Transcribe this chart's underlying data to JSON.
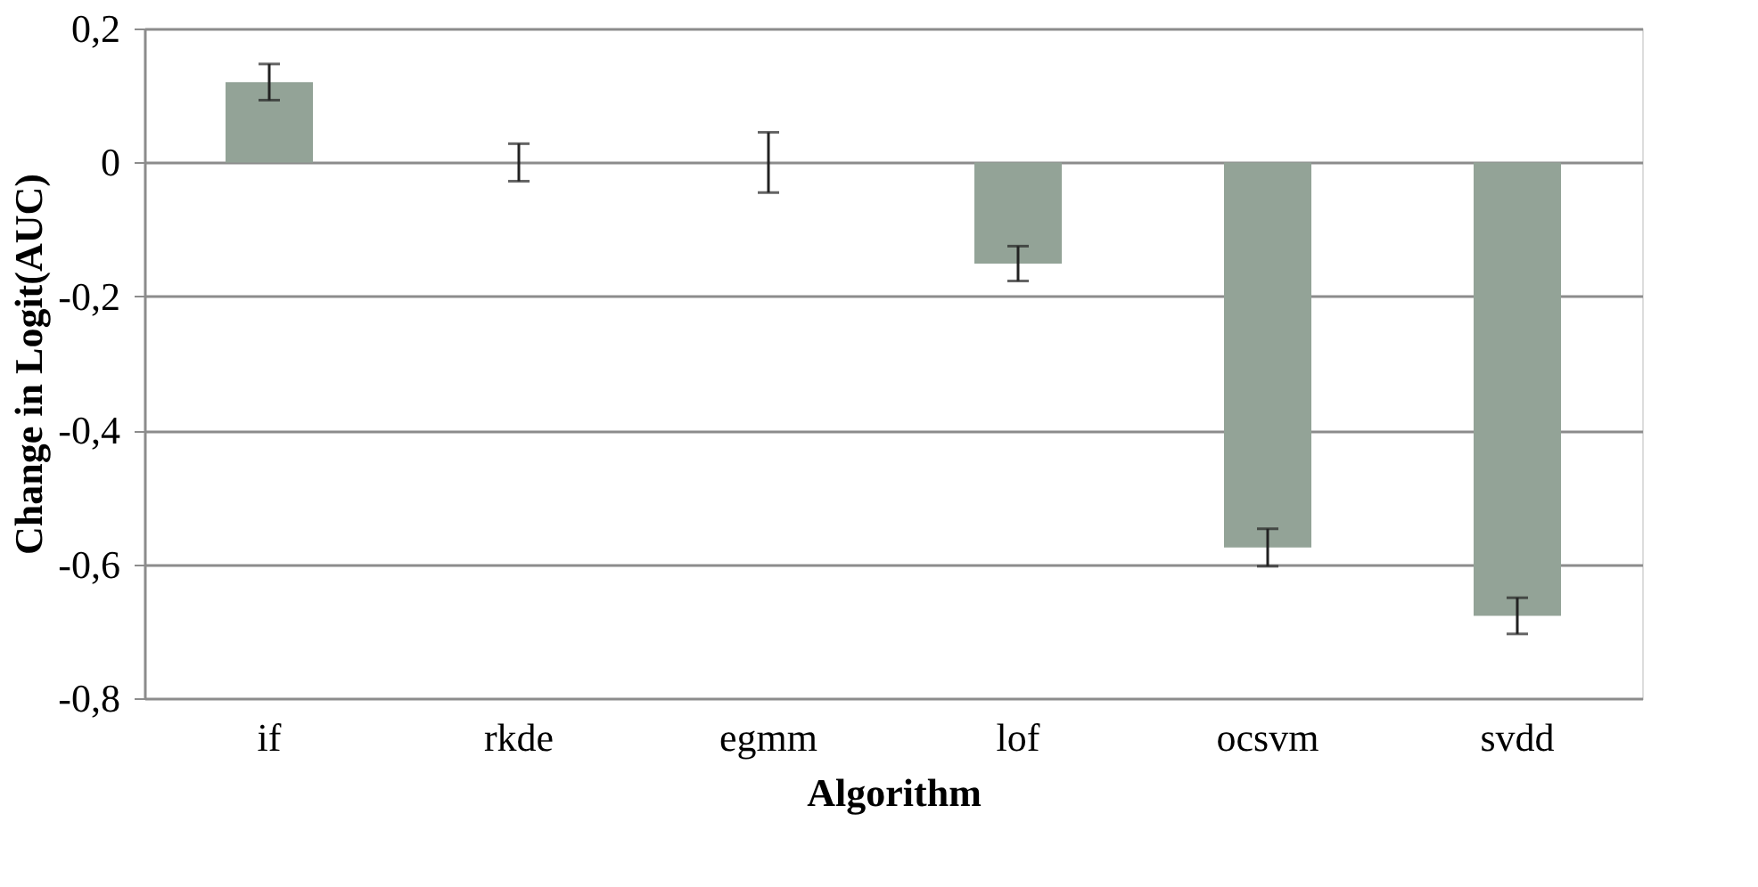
{
  "chart_data": {
    "type": "bar",
    "xlabel": "Algorithm",
    "ylabel": "Change in Logit(AUC)",
    "categories": [
      "if",
      "rkde",
      "egmm",
      "lof",
      "ocsvm",
      "svdd"
    ],
    "values": [
      0.12,
      0,
      0,
      -0.151,
      -0.575,
      -0.677
    ],
    "errors": [
      0.027,
      0.028,
      0.045,
      0.026,
      0.028,
      0.027
    ],
    "color": "#93a397",
    "ylim": [
      -0.8,
      0.2
    ],
    "yticks": [
      {
        "value": -0.8,
        "label": "-0,8"
      },
      {
        "value": -0.6,
        "label": "-0,6"
      },
      {
        "value": -0.4,
        "label": "-0,4"
      },
      {
        "value": -0.2,
        "label": "-0,2"
      },
      {
        "value": 0,
        "label": "0"
      },
      {
        "value": 0.2,
        "label": "0,2"
      }
    ],
    "grid": "y"
  }
}
